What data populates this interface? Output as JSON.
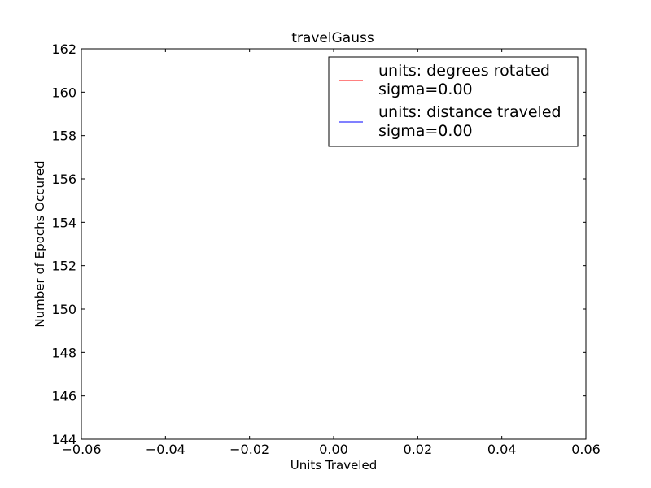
{
  "chart_data": {
    "type": "line",
    "title": "travelGauss",
    "xlabel": "Units Traveled",
    "ylabel": "Number of Epochs Occured",
    "xlim": [
      -0.06,
      0.06
    ],
    "ylim": [
      144,
      162
    ],
    "x_ticks": [
      -0.06,
      -0.04,
      -0.02,
      0.0,
      0.02,
      0.04,
      0.06
    ],
    "x_tick_labels": [
      "−0.06",
      "−0.04",
      "−0.02",
      "0.00",
      "0.02",
      "0.04",
      "0.06"
    ],
    "y_ticks": [
      144,
      146,
      148,
      150,
      152,
      154,
      156,
      158,
      160,
      162
    ],
    "y_tick_labels": [
      "144",
      "146",
      "148",
      "150",
      "152",
      "154",
      "156",
      "158",
      "160",
      "162"
    ],
    "grid": false,
    "legend_position": "top-right",
    "series": [
      {
        "label_line1": "units: degrees rotated",
        "label_line2": "sigma=0.00",
        "color": "#ff0000",
        "x": [],
        "y": []
      },
      {
        "label_line1": "units: distance traveled",
        "label_line2": "sigma=0.00",
        "color": "#0000ff",
        "x": [],
        "y": []
      }
    ]
  }
}
